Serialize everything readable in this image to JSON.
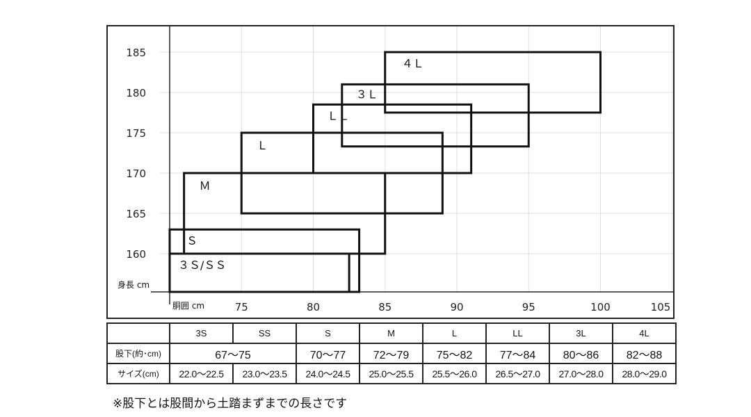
{
  "chart_data": {
    "type": "box",
    "xlabel": "胴囲 cm",
    "ylabel": "身長 cm",
    "x_ticks": [
      75,
      80,
      85,
      90,
      95,
      100,
      105
    ],
    "y_ticks": [
      160,
      165,
      170,
      175,
      180,
      185
    ],
    "xlim": [
      70,
      105
    ],
    "ylim": [
      155.3,
      188
    ],
    "grid": true,
    "series": [
      {
        "name": "３Ｓ/ＳＳ",
        "x": [
          70,
          82.5
        ],
        "y": [
          155.3,
          160
        ]
      },
      {
        "name": "Ｓ",
        "x": [
          70,
          83.2
        ],
        "y": [
          155.3,
          163
        ]
      },
      {
        "name": "Ｍ",
        "x": [
          71,
          85
        ],
        "y": [
          160,
          170
        ]
      },
      {
        "name": "Ｌ",
        "x": [
          75,
          89
        ],
        "y": [
          165,
          175
        ]
      },
      {
        "name": "ＬＬ",
        "x": [
          80,
          91
        ],
        "y": [
          170,
          178.5
        ]
      },
      {
        "name": "３Ｌ",
        "x": [
          82,
          95
        ],
        "y": [
          173.3,
          181
        ]
      },
      {
        "name": "４Ｌ",
        "x": [
          85,
          100
        ],
        "y": [
          177.5,
          185
        ]
      }
    ]
  },
  "table": {
    "headers": [
      "",
      "3S",
      "SS",
      "S",
      "M",
      "L",
      "LL",
      "3L",
      "4L"
    ],
    "inseam_label": "股下(約･cm)",
    "inseam": [
      "67～75",
      "70～77",
      "72～79",
      "75～82",
      "77～84",
      "80～86",
      "82～88"
    ],
    "shoe_label": "サイズ(cm)",
    "shoe": [
      "22.0～22.5",
      "23.0～23.5",
      "24.0～24.5",
      "25.0～25.5",
      "25.5～26.0",
      "26.5～27.0",
      "27.0～28.0",
      "28.0～29.0"
    ]
  },
  "footnote": "※股下とは股間から土踏まずまでの長さです"
}
